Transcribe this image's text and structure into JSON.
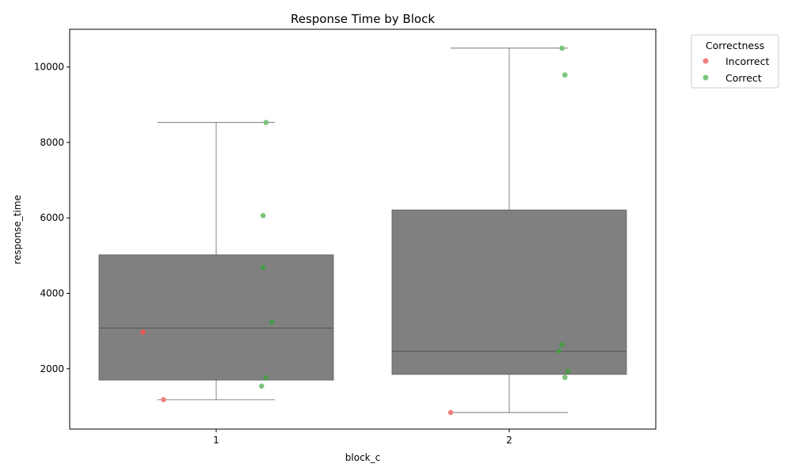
{
  "chart_data": {
    "type": "box",
    "title": "Response Time by Block",
    "xlabel": "block_c",
    "ylabel": "response_time",
    "categories": [
      "1",
      "2"
    ],
    "ylim": [
      400,
      11000
    ],
    "yticks": [
      2000,
      4000,
      6000,
      8000,
      10000
    ],
    "grid": false,
    "legend": {
      "title": "Correctness",
      "placement": "outside-top-right",
      "entries": [
        {
          "label": "Incorrect",
          "color": "#f08080"
        },
        {
          "label": "Correct",
          "color": "#7cc47c"
        }
      ]
    },
    "boxes": [
      {
        "category": "1",
        "whisker_low": 1180,
        "q1": 1700,
        "median": 3080,
        "q3": 5020,
        "whisker_high": 8530,
        "color": "#808080"
      },
      {
        "category": "2",
        "whisker_low": 840,
        "q1": 1850,
        "median": 2460,
        "q3": 6210,
        "whisker_high": 10500,
        "color": "#808080"
      }
    ],
    "points": [
      {
        "category": "1",
        "jitter": -0.25,
        "y": 2970,
        "correctness": "Incorrect"
      },
      {
        "category": "1",
        "jitter": -0.18,
        "y": 1180,
        "correctness": "Incorrect"
      },
      {
        "category": "1",
        "jitter": 0.17,
        "y": 8530,
        "correctness": "Correct"
      },
      {
        "category": "1",
        "jitter": 0.16,
        "y": 6060,
        "correctness": "Correct"
      },
      {
        "category": "1",
        "jitter": 0.16,
        "y": 4690,
        "correctness": "Correct"
      },
      {
        "category": "1",
        "jitter": 0.19,
        "y": 3230,
        "correctness": "Correct"
      },
      {
        "category": "1",
        "jitter": 0.17,
        "y": 1760,
        "correctness": "Correct"
      },
      {
        "category": "1",
        "jitter": 0.155,
        "y": 1540,
        "correctness": "Correct"
      },
      {
        "category": "2",
        "jitter": -0.2,
        "y": 840,
        "correctness": "Incorrect"
      },
      {
        "category": "2",
        "jitter": 0.18,
        "y": 10500,
        "correctness": "Correct"
      },
      {
        "category": "2",
        "jitter": 0.19,
        "y": 9790,
        "correctness": "Correct"
      },
      {
        "category": "2",
        "jitter": 0.18,
        "y": 2640,
        "correctness": "Correct"
      },
      {
        "category": "2",
        "jitter": 0.17,
        "y": 2470,
        "correctness": "Correct"
      },
      {
        "category": "2",
        "jitter": 0.2,
        "y": 1930,
        "correctness": "Correct"
      },
      {
        "category": "2",
        "jitter": 0.19,
        "y": 1770,
        "correctness": "Correct"
      }
    ]
  }
}
